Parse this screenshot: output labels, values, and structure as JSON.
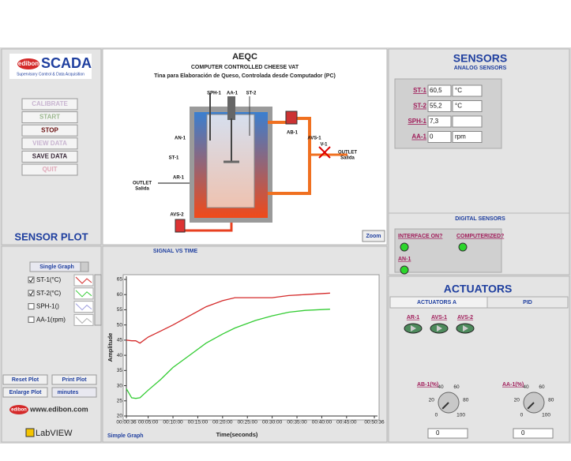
{
  "header": {
    "brand": "edibon",
    "product": "SCADA",
    "tagline": "Supervisory Control & Data Acquisition"
  },
  "controls": {
    "buttons": [
      "CALIBRATE",
      "START",
      "STOP",
      "VIEW DATA",
      "SAVE DATA",
      "QUIT"
    ]
  },
  "sensor_plot": {
    "title": "SENSOR PLOT",
    "mode": "Single Graph",
    "other_channels": [
      {
        "label": "SPH-1()",
        "checked": false,
        "color": "#a0a0e0"
      },
      {
        "label": "AA-1(rpm)",
        "checked": false,
        "color": "#b0b0b0"
      }
    ],
    "buttons": [
      "Reset Plot",
      "Print Plot",
      "Enlarge Plot"
    ],
    "time_unit": "minutes"
  },
  "footer": {
    "brand": "edibon",
    "website": "www.edibon.com",
    "software": "LabVIEW"
  },
  "diagram": {
    "code": "AEQC",
    "title": "COMPUTER CONTROLLED CHEESE VAT",
    "subtitle": "Tina para Elaboración de Queso, Controlada desde Computador (PC)",
    "labels": [
      "SPH-1",
      "AA-1",
      "ST-2",
      "AN-1",
      "ST-1",
      "AR-1",
      "AB-1",
      "AVS-1",
      "V-1",
      "OUTLET",
      "Salida",
      "OUTLET",
      "Salida",
      "AVS-2"
    ],
    "zoom": "Zoom"
  },
  "chart_data": {
    "type": "line",
    "title": "SIGNAL VS TIME",
    "caption": "Simple Graph",
    "x_label": "Time(seconds)",
    "y_label": "Amplitude",
    "x": [
      36,
      100,
      150,
      200,
      300,
      450,
      600,
      800,
      1000,
      1200,
      1350,
      1600,
      1800,
      2000,
      2200,
      2500
    ],
    "xlim": [
      36,
      3036
    ],
    "xticks": [
      {
        "value": 36,
        "label": "00:00:36"
      },
      {
        "value": 300,
        "label": "00:05:00"
      },
      {
        "value": 600,
        "label": "00:10:00"
      },
      {
        "value": 900,
        "label": "00:15:00"
      },
      {
        "value": 1200,
        "label": "00:20:00"
      },
      {
        "value": 1500,
        "label": "00:25:00"
      },
      {
        "value": 1800,
        "label": "00:30:00"
      },
      {
        "value": 2100,
        "label": "00:35:00"
      },
      {
        "value": 2400,
        "label": "00:40:00"
      },
      {
        "value": 2700,
        "label": "00:45:00"
      },
      {
        "value": 3036,
        "label": "00:50:36"
      }
    ],
    "ylim": [
      20,
      65
    ],
    "yticks": [
      20,
      25,
      30,
      35,
      40,
      45,
      50,
      55,
      60,
      65
    ],
    "grid": false,
    "series": [
      {
        "name": "ST-1(°C)",
        "color": "#d42a2a",
        "checked": true,
        "values": [
          45,
          44.8,
          44.8,
          44,
          46,
          48,
          50,
          53,
          56,
          58,
          59,
          59,
          59,
          59.7,
          60,
          60.5
        ]
      },
      {
        "name": "ST-2(°C)",
        "color": "#33cc33",
        "checked": true,
        "values": [
          29,
          26,
          25.8,
          26,
          28.5,
          32,
          36,
          40,
          44,
          47,
          49,
          51.5,
          53,
          54.2,
          54.8,
          55.2
        ]
      }
    ]
  },
  "sensors": {
    "title": "SENSORS",
    "subtitle": "ANALOG SENSORS",
    "rows": [
      {
        "label": "ST-1",
        "value": "60,5",
        "unit": "°C"
      },
      {
        "label": "ST-2",
        "value": "55,2",
        "unit": "°C"
      },
      {
        "label": "SPH-1",
        "value": "7,3"
      },
      {
        "label": "AA-1",
        "value": "0",
        "unit": "rpm"
      }
    ]
  },
  "digital": {
    "title": "DIGITAL SENSORS",
    "items": [
      {
        "label": "INTERFACE ON?",
        "on": true
      },
      {
        "label": "COMPUTERIZED?",
        "on": true
      },
      {
        "label": "AN-1",
        "on": true
      }
    ]
  },
  "actuators": {
    "title": "ACTUATORS",
    "tabs": [
      "ACTUATORS A",
      "PID"
    ],
    "active_tab": 0,
    "switches": [
      {
        "label": "AR-1"
      },
      {
        "label": "AVS-1"
      },
      {
        "label": "AVS-2"
      }
    ],
    "knobs": [
      {
        "label": "AB-1(%)",
        "scale": [
          0,
          20,
          40,
          60,
          80,
          100
        ],
        "value": 0
      },
      {
        "label": "AA-1(%)",
        "scale": [
          0,
          20,
          40,
          60,
          80,
          100
        ],
        "value": 0
      }
    ]
  }
}
